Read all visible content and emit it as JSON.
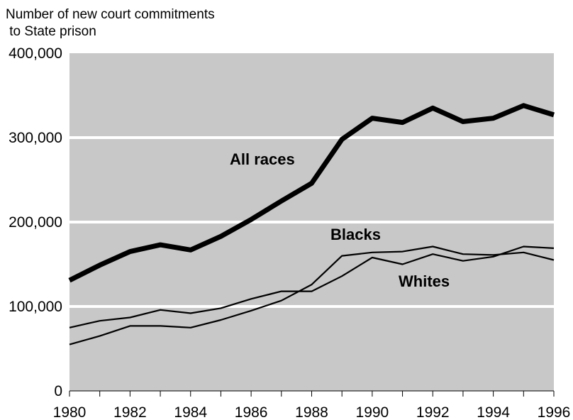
{
  "chart_data": {
    "type": "line",
    "title": "",
    "ylabel": "Number of new court commitments to State prison",
    "ylabel_lines": [
      "Number of new court commitments",
      " to State prison"
    ],
    "xlabel": "",
    "xlim": [
      1980,
      1996
    ],
    "ylim": [
      0,
      400000
    ],
    "x": [
      1980,
      1981,
      1982,
      1983,
      1984,
      1985,
      1986,
      1987,
      1988,
      1989,
      1990,
      1991,
      1992,
      1993,
      1994,
      1995,
      1996
    ],
    "xtick_labels": [
      "1980",
      "1982",
      "1984",
      "1986",
      "1988",
      "1990",
      "1992",
      "1994",
      "1996"
    ],
    "ytick_labels": [
      "0",
      "100,000",
      "200,000",
      "300,000",
      "400,000"
    ],
    "grid": true,
    "colors": {
      "plot_background": "#c8c8c8",
      "gridline": "#ffffff",
      "line": "#000000"
    },
    "series": [
      {
        "name": "All races",
        "values": [
          131000,
          149000,
          165000,
          173000,
          167000,
          183000,
          203000,
          225000,
          246000,
          298000,
          323000,
          318000,
          335000,
          319000,
          323000,
          338000,
          327000
        ]
      },
      {
        "name": "Blacks",
        "values": [
          55000,
          65000,
          77000,
          77000,
          75000,
          84000,
          95000,
          107000,
          126000,
          160000,
          164000,
          165000,
          171000,
          162000,
          161000,
          164000,
          155000
        ]
      },
      {
        "name": "Whites",
        "values": [
          75000,
          83000,
          87000,
          96000,
          92000,
          98000,
          109000,
          118000,
          118000,
          136000,
          158000,
          150000,
          162000,
          154000,
          159000,
          171000,
          169000
        ]
      }
    ]
  }
}
